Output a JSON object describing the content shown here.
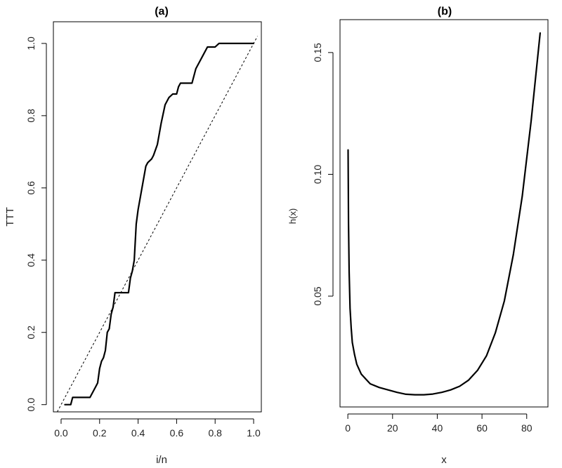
{
  "chart_data": [
    {
      "type": "line",
      "title": "(a)",
      "xlabel": "i/n",
      "ylabel": "TTT",
      "xlim": [
        -0.04,
        1.04
      ],
      "ylim": [
        -0.02,
        1.06
      ],
      "xticks": [
        0.0,
        0.2,
        0.4,
        0.6,
        0.8,
        1.0
      ],
      "xtick_labels": [
        "0.0",
        "0.2",
        "0.4",
        "0.6",
        "0.8",
        "1.0"
      ],
      "yticks": [
        0.0,
        0.2,
        0.4,
        0.6,
        0.8,
        1.0
      ],
      "ytick_labels": [
        "0.0",
        "0.2",
        "0.4",
        "0.6",
        "0.8",
        "1.0"
      ],
      "grid": false,
      "series": [
        {
          "style": "solid",
          "x": [
            0.02,
            0.05,
            0.06,
            0.15,
            0.18,
            0.19,
            0.2,
            0.21,
            0.22,
            0.23,
            0.24,
            0.25,
            0.26,
            0.27,
            0.28,
            0.3,
            0.31,
            0.35,
            0.36,
            0.37,
            0.38,
            0.39,
            0.4,
            0.42,
            0.44,
            0.45,
            0.47,
            0.48,
            0.5,
            0.52,
            0.54,
            0.56,
            0.58,
            0.6,
            0.61,
            0.62,
            0.64,
            0.66,
            0.68,
            0.7,
            0.72,
            0.74,
            0.76,
            0.78,
            0.8,
            0.82,
            0.85,
            1.0
          ],
          "y": [
            0.0,
            0.0,
            0.02,
            0.02,
            0.05,
            0.06,
            0.1,
            0.12,
            0.13,
            0.15,
            0.2,
            0.21,
            0.25,
            0.27,
            0.31,
            0.31,
            0.31,
            0.31,
            0.35,
            0.37,
            0.4,
            0.5,
            0.54,
            0.6,
            0.66,
            0.67,
            0.68,
            0.69,
            0.72,
            0.78,
            0.83,
            0.85,
            0.86,
            0.86,
            0.88,
            0.89,
            0.89,
            0.89,
            0.89,
            0.93,
            0.95,
            0.97,
            0.99,
            0.99,
            0.99,
            1.0,
            1.0,
            1.0
          ]
        },
        {
          "style": "dashed",
          "x": [
            -0.02,
            1.02
          ],
          "y": [
            -0.02,
            1.02
          ]
        }
      ]
    },
    {
      "type": "line",
      "title": "(b)",
      "xlabel": "x",
      "ylabel": "h(x)",
      "xlim": [
        -3.5,
        89.5
      ],
      "ylim": [
        0.0045,
        0.1635
      ],
      "xticks": [
        0,
        20,
        40,
        60,
        80
      ],
      "xtick_labels": [
        "0",
        "20",
        "40",
        "60",
        "80"
      ],
      "yticks": [
        0.05,
        0.1,
        0.15
      ],
      "ytick_labels": [
        "0.05",
        "0.10",
        "0.15"
      ],
      "grid": false,
      "series": [
        {
          "style": "solid",
          "x": [
            0.1,
            0.3,
            0.6,
            1,
            1.5,
            2,
            3,
            4,
            6,
            8,
            10,
            14,
            18,
            22,
            26,
            30,
            34,
            38,
            42,
            46,
            50,
            54,
            58,
            62,
            66,
            70,
            74,
            78,
            82,
            84,
            86
          ],
          "y": [
            0.11,
            0.08,
            0.06,
            0.045,
            0.037,
            0.031,
            0.026,
            0.022,
            0.018,
            0.016,
            0.014,
            0.0125,
            0.0115,
            0.0105,
            0.0097,
            0.0095,
            0.0095,
            0.0098,
            0.0105,
            0.0115,
            0.013,
            0.0155,
            0.0195,
            0.0255,
            0.035,
            0.048,
            0.067,
            0.091,
            0.122,
            0.14,
            0.158
          ]
        }
      ]
    }
  ]
}
